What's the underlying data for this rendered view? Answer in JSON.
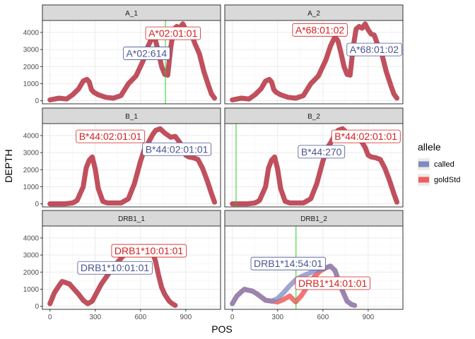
{
  "chart_data": {
    "type": "line",
    "xlabel": "POS",
    "ylabel": "DEPTH",
    "xlim": [
      -50,
      1130
    ],
    "ylim": [
      -180,
      4700
    ],
    "x_ticks": [
      0,
      300,
      600,
      900
    ],
    "x_tick_labels": [
      "0",
      "300",
      "600",
      "900"
    ],
    "y_ticks": [
      0,
      1000,
      2000,
      3000,
      4000
    ],
    "y_tick_labels": [
      "0",
      "1000",
      "2000",
      "3000",
      "4000"
    ],
    "grid": true,
    "legend": {
      "title": "allele",
      "position": "right",
      "items": [
        {
          "label": "called",
          "color": "#7f89c2"
        },
        {
          "label": "goldStd",
          "color": "#f25c5c"
        }
      ]
    },
    "colors": {
      "called_line": "#7f89c2",
      "gold_line": "#f25c5c",
      "overlap": "#c0505e",
      "called_label": "#4a5493",
      "gold_label": "#d42020",
      "vline": "#1fd11f"
    },
    "panels": [
      {
        "title": "A_1",
        "called": {
          "x": [
            0,
            60,
            110,
            150,
            190,
            220,
            245,
            260,
            275,
            290,
            320,
            370,
            420,
            470,
            520,
            570,
            620,
            650,
            680,
            700,
            720,
            740,
            760,
            780,
            800,
            820,
            840,
            860,
            880,
            900,
            920,
            940,
            960,
            990,
            1020,
            1050,
            1070,
            1090
          ],
          "y": [
            50,
            150,
            100,
            350,
            700,
            1150,
            1250,
            1100,
            650,
            500,
            350,
            200,
            150,
            300,
            1000,
            1450,
            2400,
            3200,
            3750,
            3500,
            2800,
            2000,
            1550,
            1500,
            3100,
            4200,
            4350,
            4250,
            4500,
            4150,
            3900,
            3850,
            3350,
            2750,
            1700,
            900,
            400,
            150
          ]
        },
        "gold": {
          "x": [
            0,
            60,
            110,
            150,
            190,
            220,
            245,
            260,
            275,
            290,
            320,
            370,
            420,
            470,
            520,
            570,
            620,
            650,
            680,
            700,
            720,
            740,
            760,
            780,
            800,
            820,
            840,
            860,
            880,
            900,
            920,
            940,
            960,
            990,
            1020,
            1050,
            1070,
            1090
          ],
          "y": [
            50,
            150,
            100,
            350,
            700,
            1150,
            1250,
            1100,
            650,
            500,
            350,
            200,
            150,
            300,
            1000,
            1450,
            2400,
            3200,
            3750,
            3500,
            2800,
            2000,
            1550,
            1500,
            3100,
            4200,
            4350,
            4250,
            4500,
            4150,
            3900,
            3850,
            3350,
            2750,
            1700,
            900,
            400,
            150
          ]
        },
        "gold_label": {
          "text": "A*02:01:01",
          "x": 815,
          "y": 3950
        },
        "called_label": {
          "text": "A*02:614",
          "x": 640,
          "y": 2780
        },
        "vline_x": 765
      },
      {
        "title": "A_2",
        "called": {
          "x": [
            0,
            60,
            110,
            150,
            190,
            220,
            245,
            260,
            275,
            290,
            320,
            370,
            420,
            470,
            520,
            570,
            620,
            650,
            680,
            700,
            720,
            740,
            760,
            780,
            800,
            820,
            840,
            860,
            880,
            900,
            920,
            940,
            960,
            990,
            1020,
            1050,
            1070,
            1090
          ],
          "y": [
            50,
            150,
            100,
            350,
            700,
            1150,
            1250,
            1100,
            650,
            500,
            350,
            200,
            150,
            300,
            1000,
            1450,
            2400,
            3200,
            3750,
            3500,
            2800,
            2000,
            1550,
            1500,
            3100,
            4200,
            4350,
            4250,
            4500,
            4150,
            3900,
            3850,
            3350,
            2750,
            1700,
            900,
            400,
            150
          ]
        },
        "gold": {
          "x": [
            0,
            60,
            110,
            150,
            190,
            220,
            245,
            260,
            275,
            290,
            320,
            370,
            420,
            470,
            520,
            570,
            620,
            650,
            680,
            700,
            720,
            740,
            760,
            780,
            800,
            820,
            840,
            860,
            880,
            900,
            920,
            940,
            960,
            990,
            1020,
            1050,
            1070,
            1090
          ],
          "y": [
            50,
            150,
            100,
            350,
            700,
            1150,
            1250,
            1100,
            650,
            500,
            350,
            200,
            150,
            300,
            1000,
            1450,
            2400,
            3200,
            3750,
            3500,
            2800,
            2000,
            1550,
            1500,
            3100,
            4200,
            4350,
            4250,
            4500,
            4150,
            3900,
            3850,
            3350,
            2750,
            1700,
            900,
            400,
            150
          ]
        },
        "gold_label": {
          "text": "A*68:01:02",
          "x": 580,
          "y": 4150
        },
        "called_label": {
          "text": "A*68:01:02",
          "x": 940,
          "y": 3000
        }
      },
      {
        "title": "B_1",
        "called": {
          "x": [
            0,
            50,
            100,
            150,
            180,
            220,
            240,
            260,
            280,
            300,
            320,
            350,
            380,
            420,
            470,
            520,
            560,
            600,
            630,
            650,
            680,
            700,
            730,
            760,
            800,
            830,
            860,
            880,
            900,
            920,
            950,
            980,
            1010,
            1040,
            1070,
            1090
          ],
          "y": [
            0,
            0,
            0,
            50,
            200,
            1000,
            2100,
            2550,
            2750,
            2050,
            900,
            150,
            50,
            50,
            50,
            300,
            1200,
            2500,
            3300,
            3550,
            4050,
            4300,
            4400,
            4150,
            3900,
            3950,
            3600,
            3300,
            2850,
            2750,
            2700,
            2600,
            2100,
            1400,
            600,
            100
          ]
        },
        "gold": {
          "x": [
            0,
            50,
            100,
            150,
            180,
            220,
            240,
            260,
            280,
            300,
            320,
            350,
            380,
            420,
            470,
            520,
            560,
            600,
            630,
            650,
            680,
            700,
            730,
            760,
            800,
            830,
            860,
            880,
            900,
            920,
            950,
            980,
            1010,
            1040,
            1070,
            1090
          ],
          "y": [
            0,
            0,
            0,
            50,
            200,
            1000,
            2100,
            2550,
            2750,
            2050,
            900,
            150,
            50,
            50,
            50,
            300,
            1200,
            2500,
            3300,
            3550,
            4050,
            4300,
            4400,
            4150,
            3900,
            3950,
            3600,
            3300,
            2850,
            2750,
            2700,
            2600,
            2100,
            1400,
            600,
            100
          ]
        },
        "gold_label": {
          "text": "B*44:02:01:01",
          "x": 400,
          "y": 3950
        },
        "called_label": {
          "text": "B*44:02:01:01",
          "x": 840,
          "y": 3200
        }
      },
      {
        "title": "B_2",
        "called": {
          "x": [
            0,
            50,
            100,
            150,
            180,
            220,
            240,
            260,
            280,
            300,
            320,
            350,
            380,
            420,
            470,
            520,
            560,
            600,
            630,
            650,
            680,
            700,
            730,
            760,
            800,
            830,
            860,
            880,
            900,
            920,
            950,
            980,
            1010,
            1040,
            1070,
            1090
          ],
          "y": [
            0,
            0,
            0,
            50,
            200,
            1000,
            2100,
            2550,
            2750,
            2050,
            900,
            150,
            50,
            50,
            50,
            300,
            1200,
            2500,
            3300,
            3550,
            4050,
            4300,
            4400,
            4150,
            3900,
            3950,
            3600,
            3300,
            2850,
            2750,
            2700,
            2600,
            2100,
            1400,
            600,
            100
          ]
        },
        "gold": {
          "x": [
            0,
            50,
            100,
            150,
            180,
            220,
            240,
            260,
            280,
            300,
            320,
            350,
            380,
            420,
            470,
            520,
            560,
            600,
            630,
            650,
            680,
            700,
            730,
            760,
            800,
            830,
            860,
            880,
            900,
            920,
            950,
            980,
            1010,
            1040,
            1070,
            1090
          ],
          "y": [
            0,
            0,
            0,
            50,
            200,
            1000,
            2100,
            2550,
            2750,
            2050,
            900,
            150,
            50,
            50,
            50,
            300,
            1200,
            2500,
            3300,
            3550,
            4050,
            4300,
            4400,
            4150,
            3900,
            3950,
            3600,
            3300,
            2850,
            2750,
            2700,
            2600,
            2100,
            1400,
            600,
            100
          ]
        },
        "gold_label": {
          "text": "B*44:02:01:01",
          "x": 885,
          "y": 3950
        },
        "called_label": {
          "text": "B*44:270",
          "x": 590,
          "y": 3050
        },
        "vline_x": 25
      },
      {
        "title": "DRB1_1",
        "called": {
          "x": [
            0,
            30,
            60,
            80,
            100,
            130,
            160,
            190,
            220,
            250,
            280,
            310,
            340,
            380,
            420,
            460,
            500,
            530,
            560,
            590,
            620,
            650,
            680,
            700,
            720,
            740,
            760,
            790,
            810,
            830
          ],
          "y": [
            150,
            800,
            1200,
            1450,
            1400,
            1300,
            1000,
            700,
            350,
            150,
            300,
            800,
            1300,
            1800,
            2300,
            2700,
            3100,
            3150,
            3250,
            3350,
            3400,
            3500,
            3200,
            2600,
            1800,
            1100,
            700,
            300,
            150,
            50
          ]
        },
        "gold": {
          "x": [
            0,
            30,
            60,
            80,
            100,
            130,
            160,
            190,
            220,
            250,
            280,
            310,
            340,
            380,
            420,
            460,
            500,
            530,
            560,
            590,
            620,
            650,
            680,
            700,
            720,
            740,
            760,
            790,
            810,
            830
          ],
          "y": [
            150,
            800,
            1200,
            1450,
            1400,
            1300,
            1000,
            700,
            350,
            150,
            300,
            800,
            1300,
            1800,
            2300,
            2700,
            3100,
            3150,
            3250,
            3350,
            3400,
            3500,
            3200,
            2600,
            1800,
            1100,
            700,
            300,
            150,
            50
          ]
        },
        "gold_label": {
          "text": "DRB1*10:01:01",
          "x": 655,
          "y": 3250
        },
        "called_label": {
          "text": "DRB1*10:01:01",
          "x": 430,
          "y": 2250
        }
      },
      {
        "title": "DRB1_2",
        "called": {
          "x": [
            0,
            30,
            60,
            80,
            100,
            130,
            160,
            190,
            220,
            260,
            300,
            340,
            380,
            420,
            460,
            500,
            540,
            580,
            620,
            650,
            680,
            700,
            720,
            740,
            760,
            790,
            810
          ],
          "y": [
            150,
            600,
            850,
            1000,
            950,
            900,
            750,
            550,
            350,
            300,
            450,
            800,
            1200,
            1550,
            1750,
            1900,
            2050,
            2150,
            2250,
            2350,
            2100,
            1600,
            1100,
            700,
            300,
            100,
            50
          ]
        },
        "gold": {
          "x": [
            0,
            30,
            60,
            80,
            100,
            130,
            160,
            190,
            220,
            260,
            300,
            340,
            380,
            420,
            460,
            500,
            540,
            580,
            620,
            650,
            680,
            700,
            720,
            740,
            760,
            790,
            810
          ],
          "y": [
            150,
            600,
            850,
            1000,
            950,
            900,
            750,
            550,
            350,
            300,
            250,
            400,
            600,
            250,
            650,
            1200,
            1700,
            2050,
            2250,
            2350,
            2100,
            1600,
            1100,
            700,
            300,
            100,
            50
          ]
        },
        "gold_label": {
          "text": "DRB1*14:01:01",
          "x": 665,
          "y": 1350
        },
        "called_label": {
          "text": "DRB1*14:54:01",
          "x": 370,
          "y": 2500
        },
        "vline_x": 422
      }
    ]
  }
}
